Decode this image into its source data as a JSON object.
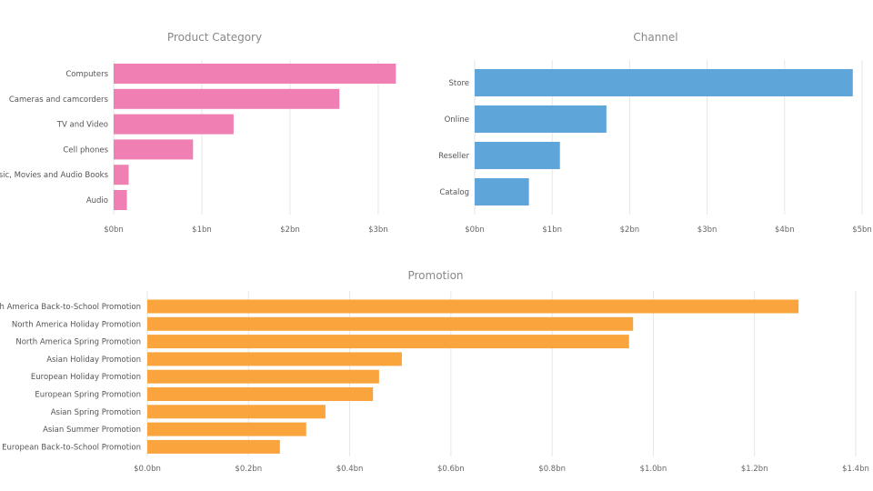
{
  "chart_data": [
    {
      "id": "category",
      "type": "bar",
      "orientation": "horizontal",
      "title": "Product Category",
      "color": "#f07fb4",
      "categories": [
        "Computers",
        "Cameras and camcorders",
        "TV and Video",
        "Cell phones",
        "Music, Movies and Audio Books",
        "Audio"
      ],
      "values": [
        3.2,
        2.56,
        1.36,
        0.9,
        0.17,
        0.15
      ],
      "xlim": [
        0,
        3.3
      ],
      "ticks": [
        0,
        1,
        2,
        3
      ],
      "tick_labels": [
        "$0bn",
        "$1bn",
        "$2bn",
        "$3bn"
      ],
      "grid": true,
      "legend": "none"
    },
    {
      "id": "channel",
      "type": "bar",
      "orientation": "horizontal",
      "title": "Channel",
      "color": "#5ea5da",
      "categories": [
        "Store",
        "Online",
        "Reseller",
        "Catalog"
      ],
      "values": [
        4.88,
        1.7,
        1.1,
        0.7
      ],
      "xlim": [
        0,
        5
      ],
      "ticks": [
        0,
        1,
        2,
        3,
        4,
        5
      ],
      "tick_labels": [
        "$0bn",
        "$1bn",
        "$2bn",
        "$3bn",
        "$4bn",
        "$5bn"
      ],
      "grid": true,
      "legend": "none"
    },
    {
      "id": "promotion",
      "type": "bar",
      "orientation": "horizontal",
      "title": "Promotion",
      "color": "#f9a43c",
      "categories": [
        "North America Back-to-School Promotion",
        "North America Holiday Promotion",
        "North America Spring Promotion",
        "Asian Holiday Promotion",
        "European Holiday Promotion",
        "European Spring Promotion",
        "Asian Spring Promotion",
        "Asian Summer Promotion",
        "European Back-to-School Promotion"
      ],
      "values": [
        1.287,
        0.96,
        0.952,
        0.503,
        0.458,
        0.446,
        0.352,
        0.314,
        0.262
      ],
      "xlim": [
        0,
        1.4
      ],
      "ticks": [
        0,
        0.2,
        0.4,
        0.6,
        0.8,
        1.0,
        1.2,
        1.4
      ],
      "tick_labels": [
        "$0.0bn",
        "$0.2bn",
        "$0.4bn",
        "$0.6bn",
        "$0.8bn",
        "$1.0bn",
        "$1.2bn",
        "$1.4bn"
      ],
      "grid": true,
      "legend": "none"
    }
  ]
}
